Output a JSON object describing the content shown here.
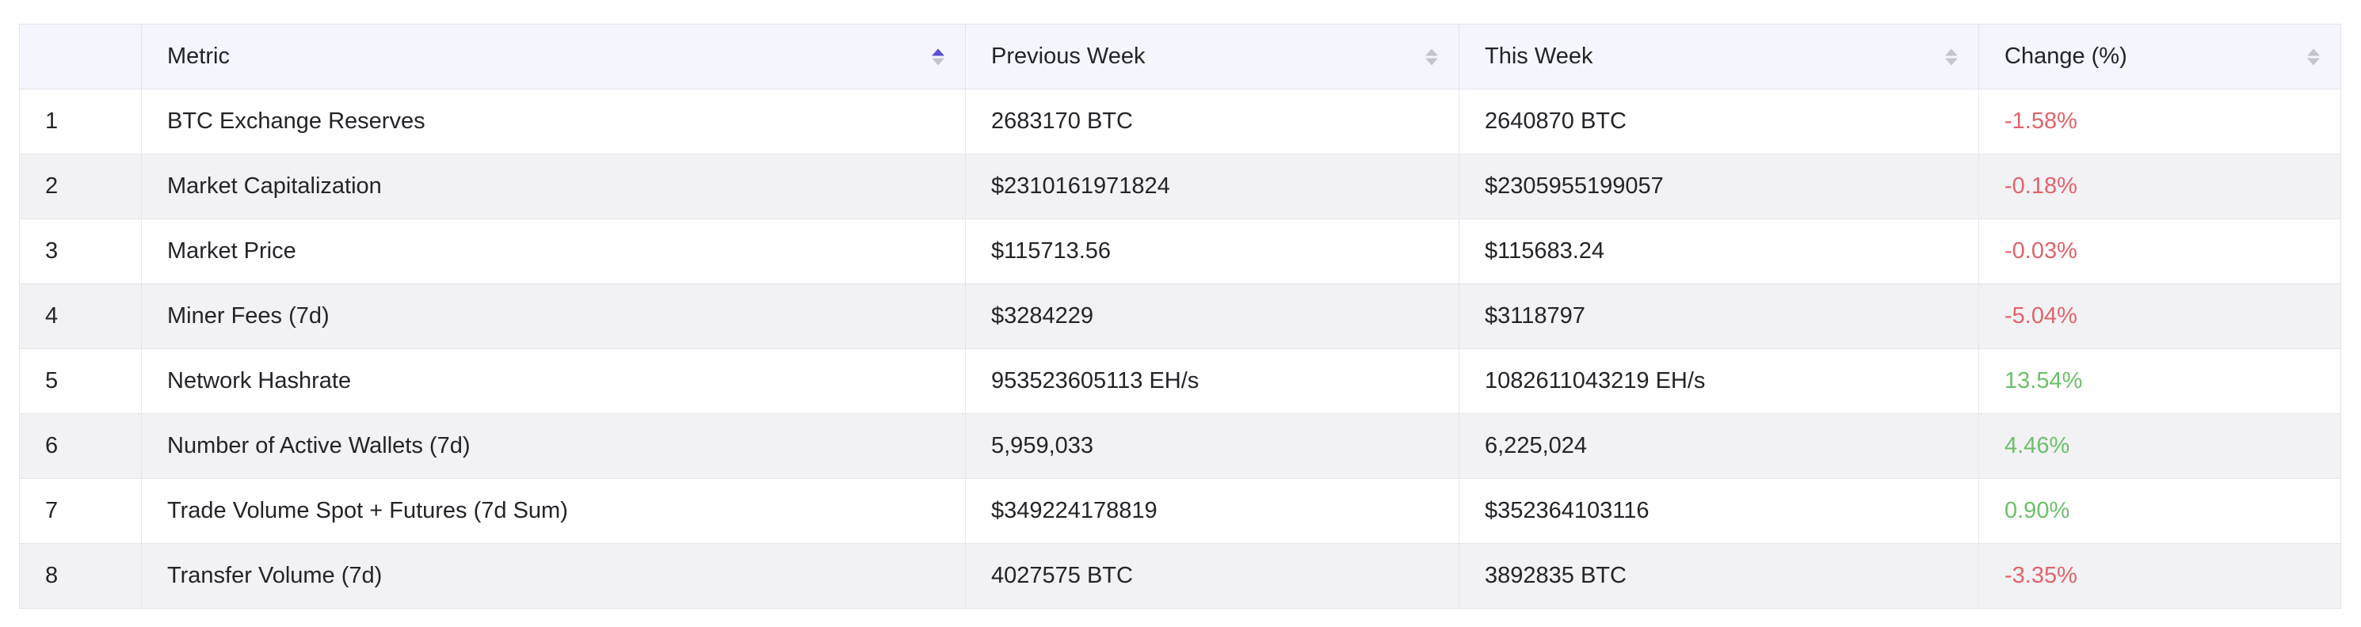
{
  "table": {
    "headers": {
      "index": "",
      "metric": "Metric",
      "previous_week": "Previous Week",
      "this_week": "This Week",
      "change": "Change (%)"
    },
    "colors": {
      "negative": "#e0636b",
      "positive": "#6dbf6a",
      "sort_active": "#5b4fd6"
    },
    "rows": [
      {
        "index": "1",
        "metric": "BTC Exchange Reserves",
        "previous_week": "2683170 BTC",
        "this_week": "2640870 BTC",
        "change": "-1.58%"
      },
      {
        "index": "2",
        "metric": "Market Capitalization",
        "previous_week": "$2310161971824",
        "this_week": "$2305955199057",
        "change": "-0.18%"
      },
      {
        "index": "3",
        "metric": "Market Price",
        "previous_week": "$115713.56",
        "this_week": "$115683.24",
        "change": "-0.03%"
      },
      {
        "index": "4",
        "metric": "Miner Fees (7d)",
        "previous_week": "$3284229",
        "this_week": "$3118797",
        "change": "-5.04%"
      },
      {
        "index": "5",
        "metric": "Network Hashrate",
        "previous_week": "953523605113 EH/s",
        "this_week": "1082611043219 EH/s",
        "change": "13.54%"
      },
      {
        "index": "6",
        "metric": "Number of Active Wallets (7d)",
        "previous_week": "5,959,033",
        "this_week": "6,225,024",
        "change": "4.46%"
      },
      {
        "index": "7",
        "metric": "Trade Volume Spot + Futures (7d Sum)",
        "previous_week": "$349224178819",
        "this_week": "$352364103116",
        "change": "0.90%"
      },
      {
        "index": "8",
        "metric": "Transfer Volume (7d)",
        "previous_week": "4027575 BTC",
        "this_week": "3892835 BTC",
        "change": "-3.35%"
      }
    ]
  }
}
